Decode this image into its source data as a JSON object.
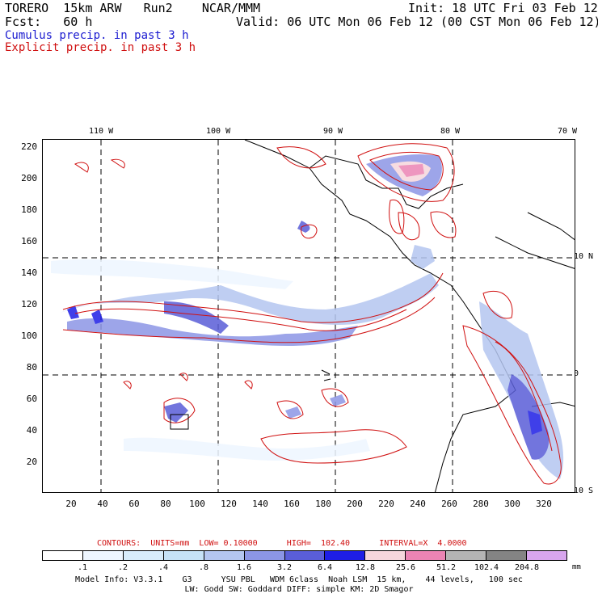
{
  "header": {
    "line1_left": "TORERO  15km ARW   Run2    NCAR/MMM",
    "line1_right": "Init: 18 UTC Fri 03 Feb 12",
    "line2_left": "Fcst:   60 h",
    "line2_right": "Valid: 06 UTC Mon 06 Feb 12 (00 CST Mon 06 Feb 12)",
    "cumulus_label": "Cumulus precip. in past 3 h",
    "explicit_label": "Explicit precip. in past 3 h"
  },
  "axes": {
    "top_longitudes": [
      "110 W",
      "100 W",
      "90 W",
      "80 W",
      "70 W"
    ],
    "right_latitudes": [
      "10 N",
      "0",
      "10 S"
    ],
    "y_ticks": [
      "220",
      "200",
      "180",
      "160",
      "140",
      "120",
      "100",
      "80",
      "60",
      "40",
      "20"
    ],
    "x_ticks": [
      "20",
      "40",
      "60",
      "80",
      "100",
      "120",
      "140",
      "160",
      "180",
      "200",
      "220",
      "240",
      "260",
      "280",
      "300",
      "320"
    ]
  },
  "contours": {
    "label": "CONTOURS:  UNITS=mm  LOW= 0.10000      HIGH=  102.40      INTERVAL=X  4.0000"
  },
  "colorbar": {
    "colors": [
      "#ffffff",
      "#eef6ff",
      "#d8ecfb",
      "#c6e2f7",
      "#b4c6f0",
      "#8c96e6",
      "#5a5ed8",
      "#1e1ee6",
      "#f6d6dc",
      "#ec84b4",
      "#b4b4b4",
      "#848484",
      "#d8a6ee"
    ],
    "ticks": [
      ".1",
      ".2",
      ".4",
      ".8",
      "1.6",
      "3.2",
      "6.4",
      "12.8",
      "25.6",
      "51.2",
      "102.4",
      "204.8"
    ],
    "units": "mm"
  },
  "footer": {
    "line1": "Model Info: V3.3.1    G3      YSU PBL   WDM 6class  Noah LSM  15 km,    44 levels,   100 sec",
    "line2": "LW: Godd SW: Goddard DIFF: simple KM: 2D Smagor"
  }
}
